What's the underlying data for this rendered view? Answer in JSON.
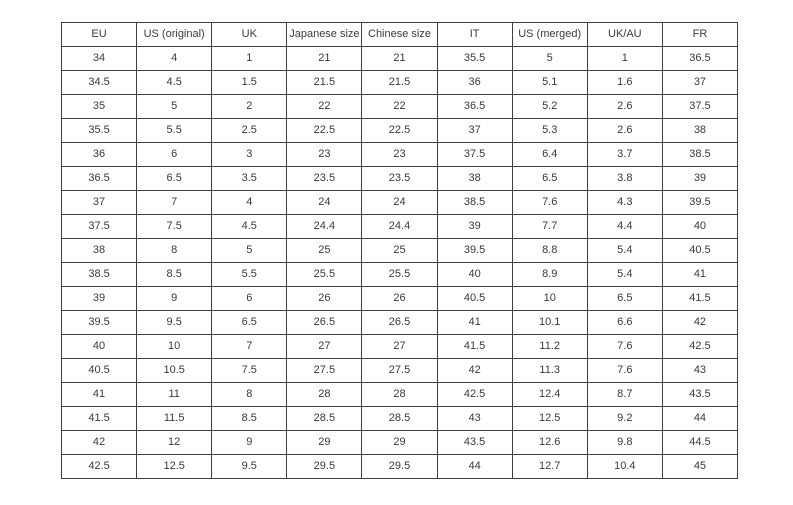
{
  "table": {
    "name": "shoe-size-conversion-table",
    "headers": [
      "EU",
      "US (original)",
      "UK",
      "Japanese size",
      "Chinese size",
      "IT",
      "US (merged)",
      "UK/AU",
      "FR"
    ],
    "rows": [
      [
        "34",
        "4",
        "1",
        "21",
        "21",
        "35.5",
        "5",
        "1",
        "36.5"
      ],
      [
        "34.5",
        "4.5",
        "1.5",
        "21.5",
        "21.5",
        "36",
        "5.1",
        "1.6",
        "37"
      ],
      [
        "35",
        "5",
        "2",
        "22",
        "22",
        "36.5",
        "5.2",
        "2.6",
        "37.5"
      ],
      [
        "35.5",
        "5.5",
        "2.5",
        "22.5",
        "22.5",
        "37",
        "5.3",
        "2.6",
        "38"
      ],
      [
        "36",
        "6",
        "3",
        "23",
        "23",
        "37.5",
        "6.4",
        "3.7",
        "38.5"
      ],
      [
        "36.5",
        "6.5",
        "3.5",
        "23.5",
        "23.5",
        "38",
        "6.5",
        "3.8",
        "39"
      ],
      [
        "37",
        "7",
        "4",
        "24",
        "24",
        "38.5",
        "7.6",
        "4.3",
        "39.5"
      ],
      [
        "37.5",
        "7.5",
        "4.5",
        "24.4",
        "24.4",
        "39",
        "7.7",
        "4.4",
        "40"
      ],
      [
        "38",
        "8",
        "5",
        "25",
        "25",
        "39.5",
        "8.8",
        "5.4",
        "40.5"
      ],
      [
        "38.5",
        "8.5",
        "5.5",
        "25.5",
        "25.5",
        "40",
        "8.9",
        "5.4",
        "41"
      ],
      [
        "39",
        "9",
        "6",
        "26",
        "26",
        "40.5",
        "10",
        "6.5",
        "41.5"
      ],
      [
        "39.5",
        "9.5",
        "6.5",
        "26.5",
        "26.5",
        "41",
        "10.1",
        "6.6",
        "42"
      ],
      [
        "40",
        "10",
        "7",
        "27",
        "27",
        "41.5",
        "11.2",
        "7.6",
        "42.5"
      ],
      [
        "40.5",
        "10.5",
        "7.5",
        "27.5",
        "27.5",
        "42",
        "11.3",
        "7.6",
        "43"
      ],
      [
        "41",
        "11",
        "8",
        "28",
        "28",
        "42.5",
        "12.4",
        "8.7",
        "43.5"
      ],
      [
        "41.5",
        "11.5",
        "8.5",
        "28.5",
        "28.5",
        "43",
        "12.5",
        "9.2",
        "44"
      ],
      [
        "42",
        "12",
        "9",
        "29",
        "29",
        "43.5",
        "12.6",
        "9.8",
        "44.5"
      ],
      [
        "42.5",
        "12.5",
        "9.5",
        "29.5",
        "29.5",
        "44",
        "12.7",
        "10.4",
        "45"
      ]
    ],
    "colors": {
      "border": "#3f3f3f",
      "text": "#3a3a3a",
      "background": "#ffffff"
    }
  }
}
